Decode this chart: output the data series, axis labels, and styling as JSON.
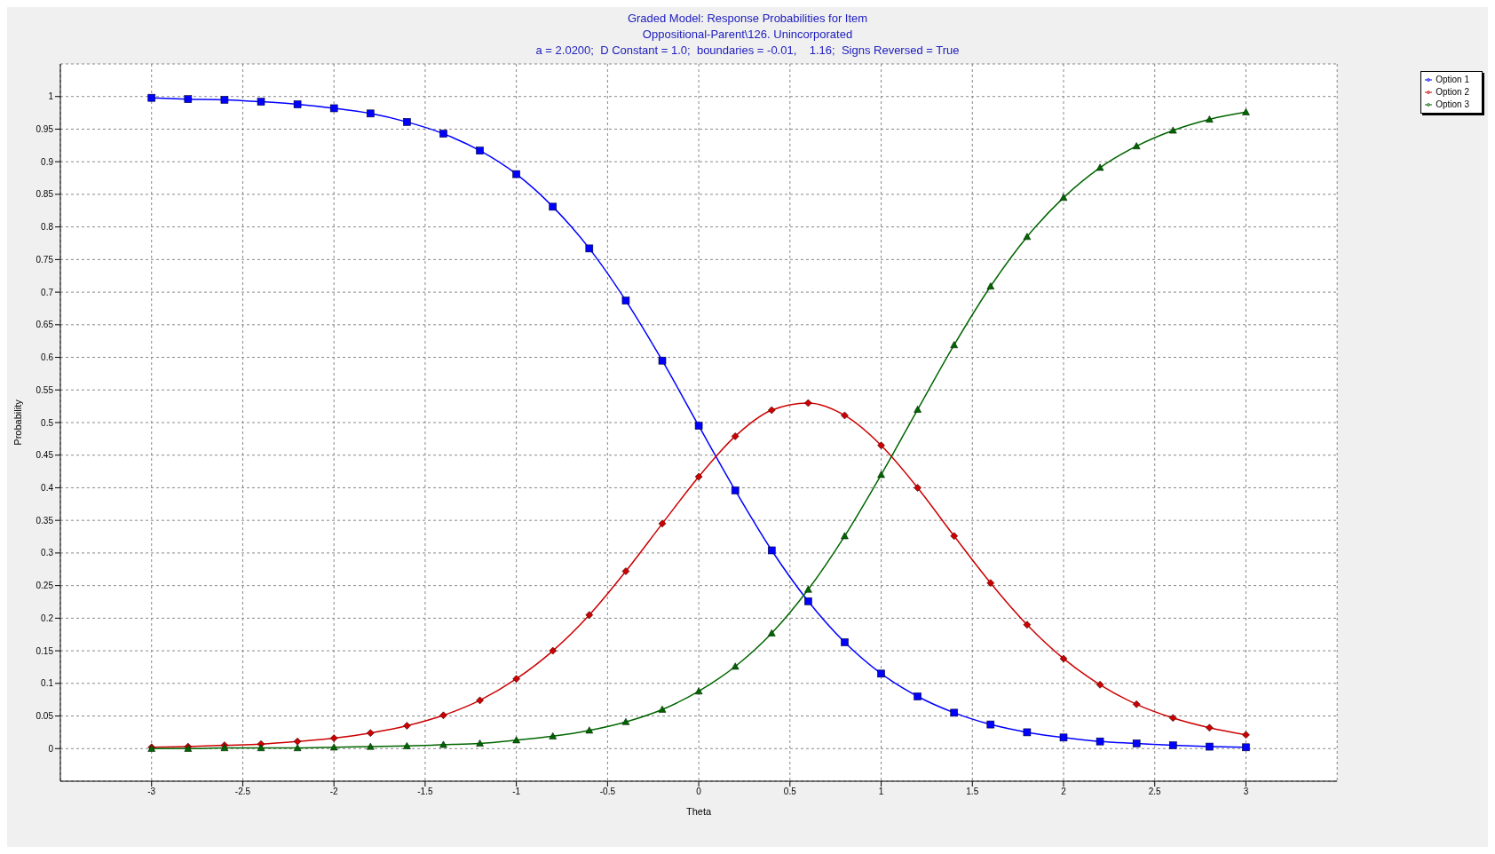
{
  "chart_data": {
    "type": "line",
    "title": "Graded Model: Response Probabilities for Item",
    "subtitle": "Oppositional-Parent\\126. Unincorporated\na = 2.0200;  D Constant = 1.0;  boundaries = -0.01,    1.16;  Signs Reversed = True",
    "xlabel": "Theta",
    "ylabel": "Probability",
    "x": [
      -3,
      -2.8,
      -2.6,
      -2.4,
      -2.2,
      -2,
      -1.8,
      -1.6,
      -1.4,
      -1.2,
      -1,
      -0.8,
      -0.6,
      -0.4,
      -0.2,
      0,
      0.2,
      0.4,
      0.6,
      0.8,
      1,
      1.2,
      1.4,
      1.6,
      1.8,
      2,
      2.2,
      2.4,
      2.6,
      2.8,
      3
    ],
    "series": [
      {
        "name": "Option 1",
        "color": "#0000ff",
        "marker": "square",
        "values": [
          0.998,
          0.996,
          0.995,
          0.992,
          0.988,
          0.982,
          0.974,
          0.961,
          0.943,
          0.917,
          0.881,
          0.831,
          0.767,
          0.687,
          0.595,
          0.495,
          0.396,
          0.304,
          0.226,
          0.163,
          0.115,
          0.08,
          0.055,
          0.037,
          0.025,
          0.017,
          0.011,
          0.008,
          0.005,
          0.003,
          0.002
        ]
      },
      {
        "name": "Option 2",
        "color": "#cc0000",
        "marker": "diamond",
        "values": [
          0.002,
          0.003,
          0.005,
          0.007,
          0.011,
          0.016,
          0.024,
          0.035,
          0.051,
          0.074,
          0.107,
          0.15,
          0.205,
          0.272,
          0.345,
          0.417,
          0.479,
          0.519,
          0.53,
          0.511,
          0.465,
          0.4,
          0.326,
          0.254,
          0.19,
          0.138,
          0.098,
          0.068,
          0.047,
          0.032,
          0.021
        ]
      },
      {
        "name": "Option 3",
        "color": "#006600",
        "marker": "triangle",
        "values": [
          0.0,
          0.0,
          0.001,
          0.001,
          0.001,
          0.002,
          0.003,
          0.004,
          0.006,
          0.008,
          0.013,
          0.019,
          0.028,
          0.041,
          0.06,
          0.088,
          0.126,
          0.177,
          0.244,
          0.326,
          0.42,
          0.52,
          0.619,
          0.709,
          0.785,
          0.845,
          0.891,
          0.924,
          0.948,
          0.965,
          0.976
        ]
      }
    ],
    "xlim": [
      -3.5,
      3.5
    ],
    "xticks": [
      -3,
      -2.5,
      -2,
      -1.5,
      -1,
      -0.5,
      0,
      0.5,
      1,
      1.5,
      2,
      2.5,
      3
    ],
    "ylim": [
      -0.05,
      1.05
    ],
    "yticks": [
      0,
      0.05,
      0.1,
      0.15,
      0.2,
      0.25,
      0.3,
      0.35,
      0.4,
      0.45,
      0.5,
      0.55,
      0.6,
      0.65,
      0.7,
      0.75,
      0.8,
      0.85,
      0.9,
      0.95,
      1
    ],
    "grid": true,
    "legend": "top right",
    "line_style": "solid"
  }
}
